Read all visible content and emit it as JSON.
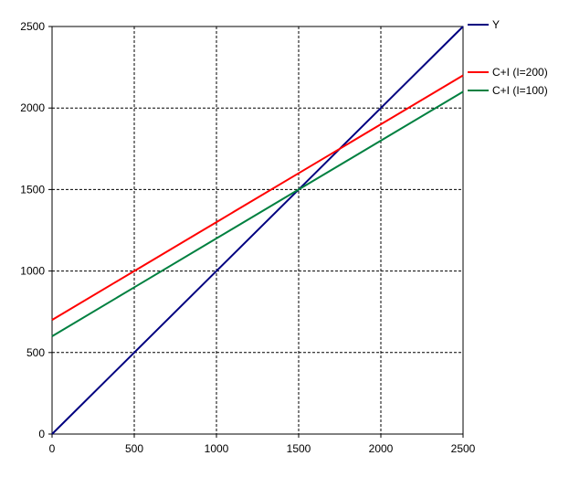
{
  "chart_data": {
    "type": "line",
    "title": "",
    "xlabel": "",
    "ylabel": "",
    "xlim": [
      0,
      2500
    ],
    "ylim": [
      0,
      2500
    ],
    "xticks": [
      0,
      500,
      1000,
      1500,
      2000,
      2500
    ],
    "yticks": [
      0,
      500,
      1000,
      1500,
      2000,
      2500
    ],
    "xtick_labels": [
      "0",
      "500",
      "1000",
      "1500",
      "2000",
      "2500"
    ],
    "ytick_labels": [
      "0",
      "500",
      "1000",
      "1500",
      "2000",
      "2500"
    ],
    "grid": true,
    "legend_position": "right",
    "x": [
      0,
      500,
      1000,
      1500,
      2000,
      2500
    ],
    "series": [
      {
        "name": "Y",
        "color": "#000080",
        "values": [
          0,
          500,
          1000,
          1500,
          2000,
          2500
        ]
      },
      {
        "name": "C+I (I=200)",
        "color": "#ff0000",
        "values": [
          700,
          1000,
          1300,
          1600,
          1900,
          2200
        ]
      },
      {
        "name": "C+I (I=100)",
        "color": "#008040",
        "values": [
          600,
          900,
          1200,
          1500,
          1800,
          2100
        ]
      }
    ]
  }
}
